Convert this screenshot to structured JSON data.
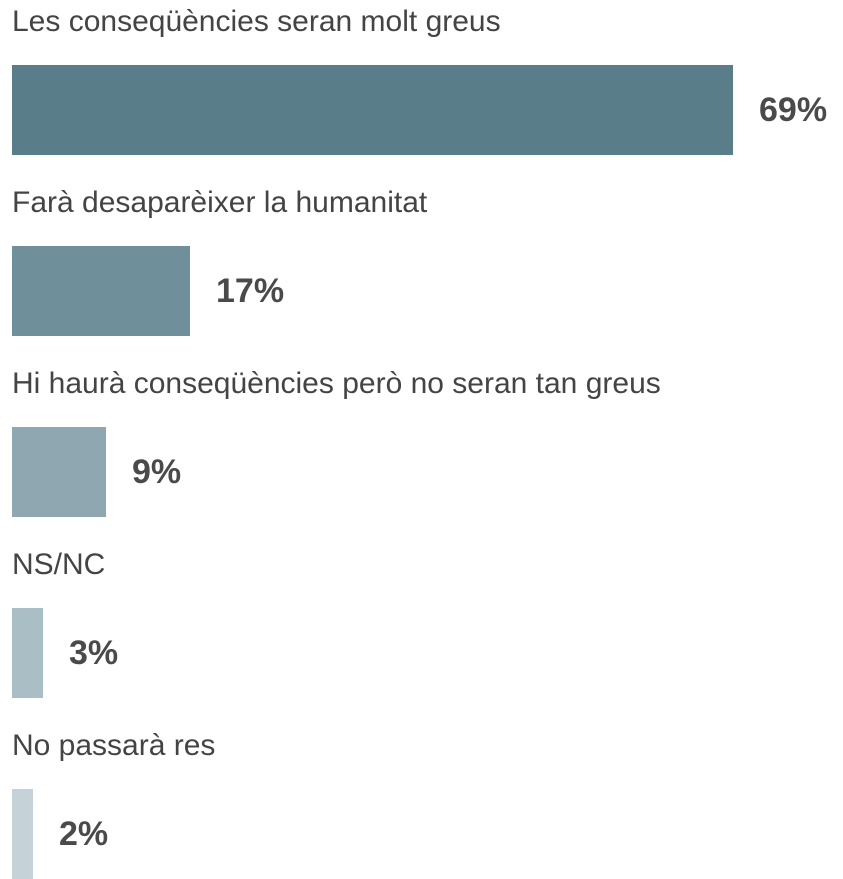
{
  "chart_data": {
    "type": "bar",
    "orientation": "horizontal",
    "categories": [
      "Les conseqüències seran molt greus",
      "Farà desaparèixer la humanitat",
      "Hi haurà conseqüències però no seran tan greus",
      "NS/NC",
      "No passarà res"
    ],
    "values": [
      69,
      17,
      9,
      3,
      2
    ],
    "value_labels": [
      "69%",
      "17%",
      "9%",
      "3%",
      "2%"
    ],
    "unit": "%",
    "xlim": [
      0,
      69
    ],
    "colors": [
      "#5a7d8a",
      "#6f8f9a",
      "#8ea7b0",
      "#aabec5",
      "#c5d3d8"
    ],
    "grid": false,
    "legend": "none"
  }
}
